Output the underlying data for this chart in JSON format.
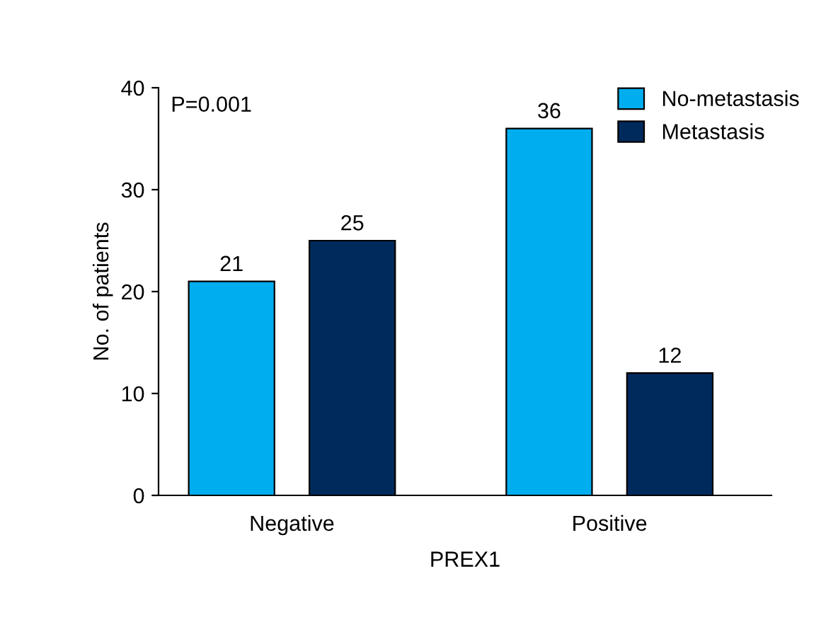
{
  "chart_data": {
    "type": "bar",
    "xlabel": "PREX1",
    "ylabel": "No. of patients",
    "categories": [
      "Negative",
      "Positive"
    ],
    "series": [
      {
        "name": "No-metastasis",
        "color": "#00aeef",
        "values": [
          21,
          36
        ]
      },
      {
        "name": "Metastasis",
        "color": "#002a5c",
        "values": [
          25,
          12
        ]
      }
    ],
    "ylim": [
      0,
      40
    ],
    "yticks": [
      0,
      10,
      20,
      30,
      40
    ],
    "data_labels": true,
    "legend": "top right",
    "grid": false,
    "annotations": [
      "P=0.001"
    ]
  }
}
